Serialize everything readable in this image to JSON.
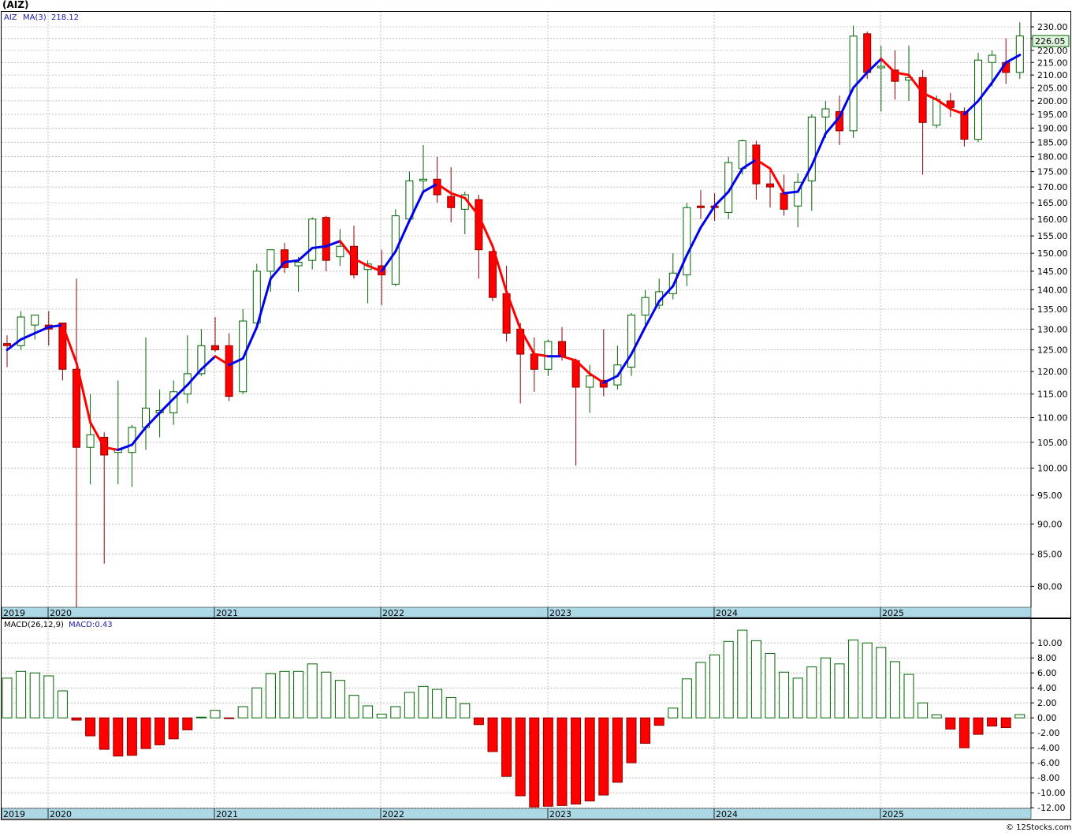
{
  "symbol_title": "(AIZ)",
  "copyright": "© 12Stocks.com",
  "colors": {
    "up": "#006400",
    "down": "#ff0000",
    "ma_up": "#0000ee",
    "ma_down": "#ff0000",
    "axis_band": "#add8e6",
    "grid": "#999999",
    "price_tag": "#e0f4e0"
  },
  "price_panel": {
    "legend": {
      "symbol": "AIZ",
      "ma_label": "MA(3)",
      "ma_value": "218.12"
    },
    "last_price_label": "226.05",
    "y_ticks": [
      "230.00",
      "225.00",
      "220.00",
      "215.00",
      "210.00",
      "205.00",
      "200.00",
      "195.00",
      "190.00",
      "185.00",
      "180.00",
      "175.00",
      "170.00",
      "165.00",
      "160.00",
      "155.00",
      "150.00",
      "145.00",
      "140.00",
      "135.00",
      "130.00",
      "125.00",
      "120.00",
      "115.00",
      "110.00",
      "105.00",
      "100.00",
      "95.00",
      "90.00",
      "85.00",
      "80.00"
    ],
    "x_labels": [
      "2019",
      "2020",
      "2021",
      "2022",
      "2023",
      "2024",
      "2025"
    ]
  },
  "macd_panel": {
    "legend": {
      "label": "MACD(26,12,9)",
      "value_label": "MACD:0.43"
    },
    "y_ticks": [
      "10.00",
      "8.00",
      "6.00",
      "4.00",
      "2.00",
      "0.00",
      "-2.00",
      "-4.00",
      "-6.00",
      "-8.00",
      "-10.00",
      "-12.00"
    ],
    "x_labels": [
      "2019",
      "2020",
      "2021",
      "2022",
      "2023",
      "2024",
      "2025"
    ]
  },
  "chart_data": [
    {
      "type": "candlestick",
      "title": "(AIZ)",
      "period": "monthly",
      "first_month": "2019-12",
      "ylim": [
        76,
        232
      ],
      "log_scale": true,
      "grid": true,
      "ohlc": [
        [
          126.5,
          128.5,
          121.0,
          126.0
        ],
        [
          126.0,
          134.5,
          125.0,
          133.0
        ],
        [
          131.0,
          133.5,
          127.5,
          133.5
        ],
        [
          131.0,
          134.5,
          126.0,
          130.0
        ],
        [
          131.5,
          131.5,
          118.0,
          120.5
        ],
        [
          120.5,
          143.0,
          76.0,
          104.0
        ],
        [
          104.0,
          115.0,
          97.0,
          106.5
        ],
        [
          106.0,
          107.0,
          83.5,
          102.5
        ],
        [
          103.0,
          118.0,
          97.0,
          103.5
        ],
        [
          103.0,
          108.5,
          96.5,
          108.0
        ],
        [
          108.0,
          128.0,
          103.5,
          112.0
        ],
        [
          111.0,
          116.0,
          106.0,
          111.5
        ],
        [
          111.0,
          118.0,
          108.5,
          115.5
        ],
        [
          115.0,
          128.5,
          113.0,
          119.5
        ],
        [
          119.5,
          130.0,
          119.0,
          126.0
        ],
        [
          126.0,
          133.0,
          124.5,
          125.0
        ],
        [
          126.0,
          129.0,
          113.5,
          114.5
        ],
        [
          115.5,
          135.0,
          115.0,
          132.0
        ],
        [
          131.5,
          147.0,
          130.0,
          145.0
        ],
        [
          145.0,
          150.0,
          139.5,
          151.0
        ],
        [
          151.0,
          153.0,
          144.5,
          146.0
        ],
        [
          146.5,
          149.0,
          139.5,
          147.5
        ],
        [
          148.0,
          160.5,
          145.5,
          160.0
        ],
        [
          160.5,
          161.0,
          145.0,
          148.0
        ],
        [
          149.0,
          157.0,
          146.5,
          152.0
        ],
        [
          152.0,
          158.0,
          143.0,
          144.0
        ],
        [
          145.5,
          148.0,
          136.5,
          147.0
        ],
        [
          146.5,
          151.0,
          136.0,
          144.0
        ],
        [
          141.5,
          163.0,
          141.0,
          161.0
        ],
        [
          160.0,
          175.0,
          159.0,
          172.0
        ],
        [
          172.0,
          184.0,
          168.5,
          172.5
        ],
        [
          172.5,
          180.0,
          165.0,
          167.5
        ],
        [
          167.0,
          176.5,
          159.0,
          163.5
        ],
        [
          163.0,
          168.5,
          155.5,
          167.5
        ],
        [
          166.0,
          167.5,
          143.0,
          151.0
        ],
        [
          150.5,
          151.0,
          137.0,
          138.0
        ],
        [
          139.0,
          146.5,
          127.0,
          129.0
        ],
        [
          130.0,
          131.5,
          113.0,
          124.0
        ],
        [
          124.0,
          128.0,
          115.5,
          120.5
        ],
        [
          120.5,
          127.5,
          119.0,
          127.0
        ],
        [
          127.0,
          130.5,
          122.5,
          123.5
        ],
        [
          122.5,
          123.0,
          100.5,
          116.5
        ],
        [
          116.5,
          121.5,
          111.0,
          119.0
        ],
        [
          118.0,
          130.0,
          114.5,
          116.5
        ],
        [
          117.0,
          126.0,
          116.0,
          121.5
        ],
        [
          121.0,
          134.0,
          119.0,
          133.5
        ],
        [
          133.5,
          140.0,
          130.0,
          138.0
        ],
        [
          136.0,
          143.0,
          135.0,
          139.5
        ],
        [
          139.0,
          150.0,
          137.5,
          144.5
        ],
        [
          144.0,
          165.0,
          141.0,
          163.5
        ],
        [
          164.0,
          169.0,
          160.0,
          163.5
        ],
        [
          164.0,
          168.0,
          159.5,
          163.5
        ],
        [
          162.0,
          180.0,
          160.0,
          178.0
        ],
        [
          176.0,
          186.0,
          174.0,
          185.5
        ],
        [
          184.0,
          185.5,
          166.0,
          171.0
        ],
        [
          171.0,
          176.0,
          163.5,
          170.0
        ],
        [
          168.0,
          174.0,
          161.0,
          163.0
        ],
        [
          164.0,
          174.5,
          157.5,
          171.5
        ],
        [
          172.0,
          195.0,
          162.5,
          194.0
        ],
        [
          194.0,
          200.0,
          186.5,
          197.0
        ],
        [
          196.0,
          202.0,
          184.0,
          189.0
        ],
        [
          189.0,
          230.5,
          186.5,
          226.0
        ],
        [
          227.0,
          228.0,
          208.5,
          211.0
        ],
        [
          213.0,
          222.0,
          196.0,
          213.5
        ],
        [
          212.0,
          220.0,
          200.5,
          207.5
        ],
        [
          208.0,
          222.0,
          200.0,
          209.0
        ],
        [
          209.0,
          212.0,
          174.0,
          192.0
        ],
        [
          191.0,
          202.0,
          190.0,
          200.5
        ],
        [
          200.0,
          203.0,
          194.0,
          197.5
        ],
        [
          196.0,
          197.5,
          183.5,
          186.0
        ],
        [
          186.0,
          219.0,
          185.0,
          216.0
        ],
        [
          215.0,
          220.0,
          205.5,
          218.0
        ],
        [
          215.0,
          225.0,
          206.5,
          211.0
        ],
        [
          211.0,
          232.0,
          208.5,
          226.05
        ]
      ],
      "ma_series": {
        "name": "MA(3)",
        "values": [
          125.0,
          127.5,
          129.0,
          130.5,
          131.0,
          122.0,
          109.0,
          104.0,
          103.5,
          104.5,
          108.0,
          111.0,
          114.0,
          117.0,
          120.5,
          123.5,
          121.5,
          123.0,
          130.5,
          143.0,
          147.5,
          148.0,
          151.5,
          152.0,
          153.5,
          148.5,
          146.5,
          145.0,
          150.5,
          159.5,
          168.5,
          171.0,
          168.0,
          166.5,
          161.0,
          152.0,
          139.5,
          130.0,
          124.0,
          123.5,
          123.5,
          122.5,
          119.5,
          117.5,
          119.0,
          124.0,
          130.5,
          137.0,
          141.0,
          149.5,
          157.5,
          164.0,
          168.5,
          176.0,
          179.0,
          176.0,
          168.0,
          168.5,
          177.0,
          188.0,
          194.0,
          205.0,
          211.0,
          216.5,
          211.0,
          210.0,
          203.0,
          200.5,
          197.0,
          195.0,
          200.0,
          207.0,
          215.0,
          218.12
        ]
      }
    },
    {
      "type": "bar",
      "title": "MACD(26,12,9)",
      "first_month": "2019-12",
      "ylim": [
        -12.5,
        11.5
      ],
      "grid": true,
      "values": [
        5.3,
        6.2,
        6.0,
        5.6,
        3.6,
        -0.3,
        -2.4,
        -4.2,
        -5.1,
        -5.0,
        -4.1,
        -3.6,
        -2.8,
        -1.6,
        0.1,
        1.0,
        -0.1,
        1.5,
        4.0,
        5.9,
        6.2,
        6.2,
        7.2,
        6.1,
        5.0,
        3.0,
        1.6,
        0.5,
        1.5,
        3.4,
        4.2,
        3.8,
        2.7,
        1.9,
        -0.9,
        -4.5,
        -7.8,
        -10.4,
        -11.9,
        -11.8,
        -11.7,
        -11.5,
        -11.1,
        -10.3,
        -8.6,
        -6.0,
        -3.4,
        -1.0,
        1.3,
        5.2,
        7.4,
        8.4,
        10.2,
        11.7,
        10.3,
        8.6,
        6.1,
        5.3,
        6.8,
        8.0,
        7.2,
        10.4,
        10.0,
        9.4,
        7.5,
        5.8,
        2.0,
        0.4,
        -1.5,
        -4.0,
        -2.2,
        -1.1,
        -1.3,
        0.43
      ]
    }
  ]
}
